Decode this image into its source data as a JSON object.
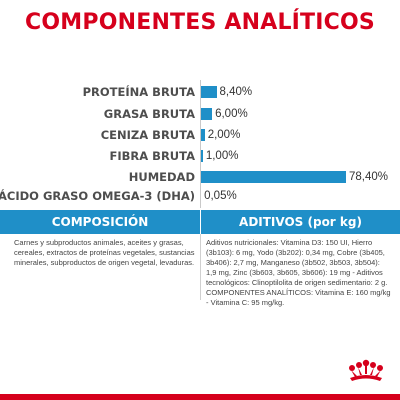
{
  "title": "COMPONENTES ANALÍTICOS",
  "analytics": [
    {
      "label": "PROTEÍNA BRUTA",
      "value": "8,40%",
      "percent": 8.4
    },
    {
      "label": "GRASA BRUTA",
      "value": "6,00%",
      "percent": 6.0
    },
    {
      "label": "CENIZA BRUTA",
      "value": "2,00%",
      "percent": 2.0
    },
    {
      "label": "FIBRA BRUTA",
      "value": "1,00%",
      "percent": 1.0
    },
    {
      "label": "HUMEDAD",
      "value": "78,40%",
      "percent": 78.4
    },
    {
      "label": "ÁCIDO GRASO OMEGA-3 (DHA)",
      "value": "0,05%",
      "percent": 0.05
    }
  ],
  "composicion": {
    "header": "COMPOSICIÓN",
    "text": "Carnes y subproductos animales, aceites y grasas, cereales, extractos de proteínas vegetales, sustancias minerales, subproductos de origen vegetal, levaduras."
  },
  "aditivos": {
    "header": "ADITIVOS (por kg)",
    "text": "Aditivos nutricionales: Vitamina D3: 150 UI, Hierro (3b103): 6 mg, Yodo (3b202): 0,34 mg, Cobre (3b405, 3b406): 2,7 mg, Manganeso (3b502, 3b503, 3b504): 1,9 mg, Zinc (3b603, 3b605, 3b606): 19 mg - Aditivos tecnológicos: Clinoptilolita de origen sedimentario: 2 g. COMPONENTES ANALÍTICOS: Vitamina E: 160 mg/kg - Vitamina C: 95 mg/kg."
  },
  "logo": {
    "name": "royal-canin-crown-logo",
    "color": "#d6001c"
  },
  "colors": {
    "accent": "#d6001c",
    "bar": "#1f8fc8",
    "label": "#4d4d4d"
  }
}
